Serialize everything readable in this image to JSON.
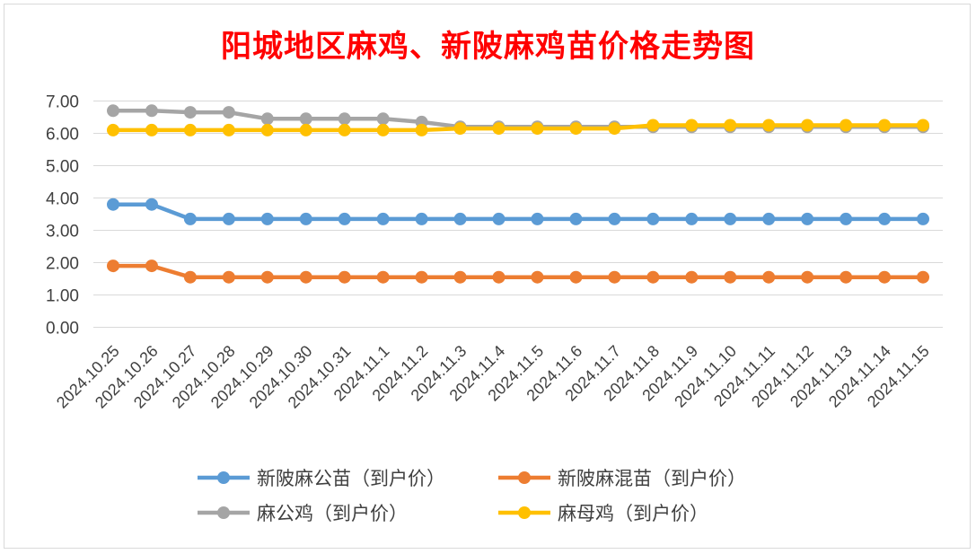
{
  "chart_data": {
    "type": "line",
    "title": "阳城地区麻鸡、新陂麻鸡苗价格走势图",
    "xlabel": "",
    "ylabel": "",
    "ylim": [
      0,
      7
    ],
    "yticks": [
      "0.00",
      "1.00",
      "2.00",
      "3.00",
      "4.00",
      "5.00",
      "6.00",
      "7.00"
    ],
    "grid": true,
    "legend_position": "bottom",
    "categories": [
      "2024.10.25",
      "2024.10.26",
      "2024.10.27",
      "2024.10.28",
      "2024.10.29",
      "2024.10.30",
      "2024.10.31",
      "2024.11.1",
      "2024.11.2",
      "2024.11.3",
      "2024.11.4",
      "2024.11.5",
      "2024.11.6",
      "2024.11.7",
      "2024.11.8",
      "2024.11.9",
      "2024.11.10",
      "2024.11.11",
      "2024.11.12",
      "2024.11.13",
      "2024.11.14",
      "2024.11.15"
    ],
    "series": [
      {
        "name": "新陂麻公苗（到户价）",
        "color": "#5b9bd5",
        "values": [
          3.8,
          3.8,
          3.35,
          3.35,
          3.35,
          3.35,
          3.35,
          3.35,
          3.35,
          3.35,
          3.35,
          3.35,
          3.35,
          3.35,
          3.35,
          3.35,
          3.35,
          3.35,
          3.35,
          3.35,
          3.35,
          3.35
        ]
      },
      {
        "name": "新陂麻混苗（到户价）",
        "color": "#ed7d31",
        "values": [
          1.9,
          1.9,
          1.55,
          1.55,
          1.55,
          1.55,
          1.55,
          1.55,
          1.55,
          1.55,
          1.55,
          1.55,
          1.55,
          1.55,
          1.55,
          1.55,
          1.55,
          1.55,
          1.55,
          1.55,
          1.55,
          1.55
        ]
      },
      {
        "name": "麻公鸡（到户价）",
        "color": "#a5a5a5",
        "values": [
          6.7,
          6.7,
          6.65,
          6.65,
          6.45,
          6.45,
          6.45,
          6.45,
          6.35,
          6.2,
          6.2,
          6.2,
          6.2,
          6.2,
          6.2,
          6.2,
          6.2,
          6.2,
          6.2,
          6.2,
          6.2,
          6.2
        ]
      },
      {
        "name": "麻母鸡（到户价）",
        "color": "#ffc000",
        "values": [
          6.1,
          6.1,
          6.1,
          6.1,
          6.1,
          6.1,
          6.1,
          6.1,
          6.1,
          6.15,
          6.15,
          6.15,
          6.15,
          6.15,
          6.25,
          6.25,
          6.25,
          6.25,
          6.25,
          6.25,
          6.25,
          6.25
        ]
      }
    ]
  }
}
